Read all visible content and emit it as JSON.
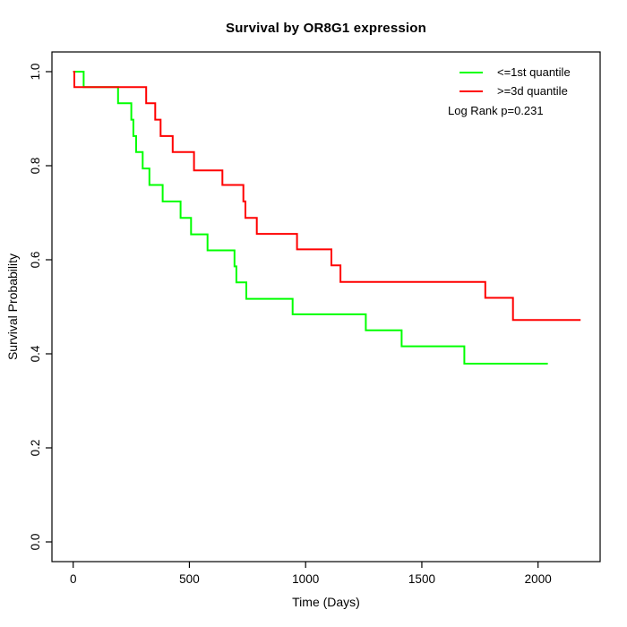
{
  "title": "Survival by OR8G1 expression",
  "chart_data": {
    "type": "line",
    "subtype": "kaplan-meier-step",
    "title": "Survival by OR8G1 expression",
    "xlabel": "Time (Days)",
    "ylabel": "Survival Probability",
    "xlim": [
      0,
      2268
    ],
    "ylim": [
      0,
      1
    ],
    "x_ticks": [
      0,
      500,
      1000,
      1500,
      2000
    ],
    "x_tick_labels": [
      "0",
      "500",
      "1000",
      "1500",
      "2000"
    ],
    "y_ticks": [
      0.0,
      0.2,
      0.4,
      0.6,
      0.8,
      1.0
    ],
    "y_tick_labels": [
      "0.0",
      "0.2",
      "0.4",
      "0.6",
      "0.8",
      "1.0"
    ],
    "grid": false,
    "legend_position": "top-right",
    "annotation": "Log Rank p=0.231",
    "series": [
      {
        "name": "<=1st quantile",
        "color": "#00ff00",
        "end_time": 2042,
        "points": [
          [
            0,
            1.0
          ],
          [
            45,
            0.967
          ],
          [
            193,
            0.933
          ],
          [
            250,
            0.898
          ],
          [
            259,
            0.863
          ],
          [
            271,
            0.829
          ],
          [
            299,
            0.794
          ],
          [
            328,
            0.759
          ],
          [
            385,
            0.724
          ],
          [
            462,
            0.689
          ],
          [
            507,
            0.654
          ],
          [
            578,
            0.62
          ],
          [
            694,
            0.586
          ],
          [
            702,
            0.552
          ],
          [
            745,
            0.517
          ],
          [
            944,
            0.484
          ],
          [
            1259,
            0.45
          ],
          [
            1413,
            0.416
          ],
          [
            1683,
            0.379
          ]
        ]
      },
      {
        "name": ">=3d quantile",
        "color": "#ff0000",
        "end_time": 2183,
        "points": [
          [
            0,
            1.0
          ],
          [
            5,
            0.967
          ],
          [
            314,
            0.933
          ],
          [
            353,
            0.898
          ],
          [
            376,
            0.863
          ],
          [
            428,
            0.829
          ],
          [
            520,
            0.79
          ],
          [
            642,
            0.759
          ],
          [
            732,
            0.724
          ],
          [
            741,
            0.689
          ],
          [
            790,
            0.655
          ],
          [
            963,
            0.622
          ],
          [
            1111,
            0.588
          ],
          [
            1150,
            0.553
          ],
          [
            1773,
            0.519
          ],
          [
            1892,
            0.472
          ]
        ]
      }
    ]
  },
  "colors": {
    "low_group": "#00ff00",
    "high_group": "#ff0000",
    "axis": "#000000",
    "text": "#000000",
    "background": "#ffffff"
  }
}
